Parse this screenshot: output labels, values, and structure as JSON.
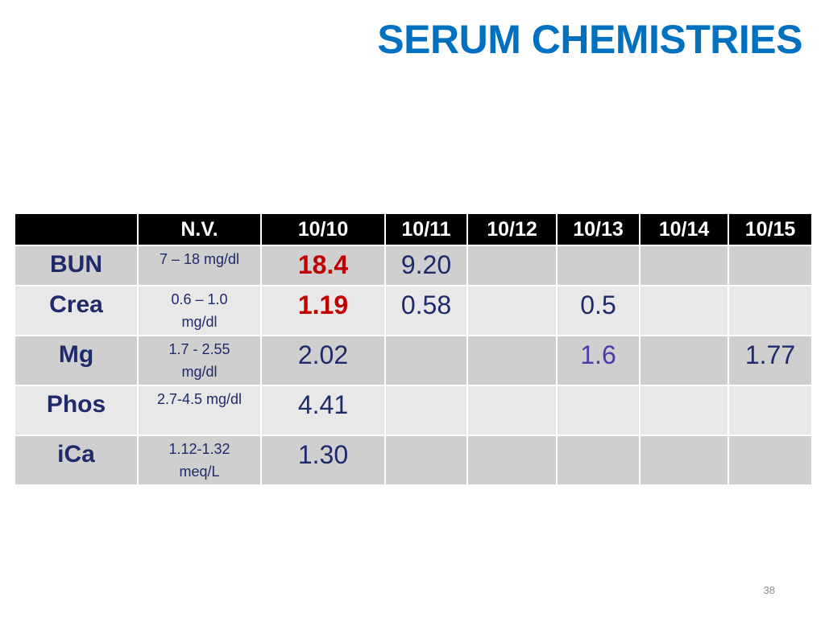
{
  "slide": {
    "title": "SERUM CHEMISTRIES",
    "number": "38",
    "title_color": "#0070c0"
  },
  "table": {
    "headers": [
      "",
      "N.V.",
      "10/10",
      "10/11",
      "10/12",
      "10/13",
      "10/14",
      "10/15"
    ],
    "rows": [
      {
        "analyte": "BUN",
        "nv": "7 – 18 mg/dl",
        "values": [
          "18.4",
          "9.20",
          "",
          "",
          "",
          ""
        ]
      },
      {
        "analyte": "Crea",
        "nv": "0.6 – 1.0 mg/dl",
        "values": [
          "1.19",
          "0.58",
          "",
          "0.5",
          "",
          ""
        ]
      },
      {
        "analyte": "Mg",
        "nv": "1.7 - 2.55 mg/dl",
        "values": [
          "2.02",
          "",
          "",
          "1.6",
          "",
          "1.77"
        ]
      },
      {
        "analyte": "Phos",
        "nv": "2.7-4.5 mg/dl",
        "values": [
          "4.41",
          "",
          "",
          "",
          "",
          ""
        ]
      },
      {
        "analyte": "iCa",
        "nv": "1.12-1.32 meq/L",
        "values": [
          "1.30",
          "",
          "",
          "",
          "",
          ""
        ]
      }
    ],
    "colors": {
      "header_bg": "#000000",
      "header_text": "#ffffff",
      "row_dark": "#cfcfcf",
      "row_light": "#e8e8e8",
      "text": "#1f2a6b",
      "abnormal": "#c00000",
      "highlight": "#4a3aa8"
    }
  }
}
